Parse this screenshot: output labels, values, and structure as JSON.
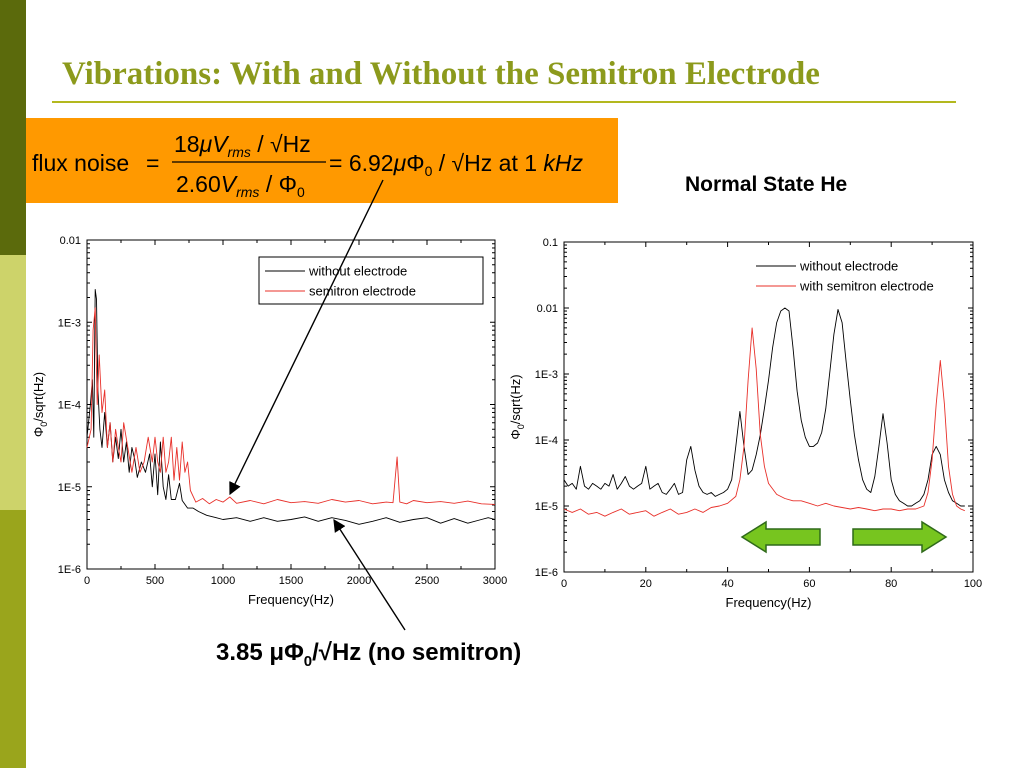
{
  "slide": {
    "title": "Vibrations: With and Without the Semitron Electrode",
    "subtitle_right": "Normal State He",
    "bottom_caption_pre": "3.85 μΦ",
    "bottom_caption_sub": "0",
    "bottom_caption_post": "/√Hz (no semitron)",
    "formula": {
      "lead": "flux noise",
      "eq1": "=",
      "num_coeff": "18",
      "num_mu": "μ",
      "num_V": "V",
      "num_sub": "rms",
      "num_rest": " / √Hz",
      "den_coeff": "2.60",
      "den_V": "V",
      "den_sub": "rms",
      "den_rest": " / Φ",
      "den_sub2": "0",
      "eq2": "= 6.92",
      "res_mu": "μ",
      "res_phi": "Φ",
      "res_sub": "0",
      "res_rest": " / √Hz",
      "tail": " at 1 ",
      "tail_unit": "kHz"
    },
    "colors": {
      "sidebar_top": "#5b6a0c",
      "sidebar_mid": "#cdd36a",
      "sidebar_bottom": "#9aa51c",
      "title": "#8c9a1c",
      "rule": "#b3b81e",
      "formula_bg": "#ff9900",
      "arrow_fill": "#77c51f",
      "arrow_stroke": "#2f6a1a",
      "black_series": "#000000",
      "red_series": "#e8302a"
    }
  },
  "chart_data": [
    {
      "type": "line",
      "xlabel": "Frequency(Hz)",
      "ylabel_phi": "Φ",
      "ylabel_sub": "0",
      "ylabel_rest": "/sqrt(Hz)",
      "xlim": [
        0,
        3000
      ],
      "ylim": [
        1e-06,
        0.01
      ],
      "yscale": "log",
      "x_ticks": [
        0,
        500,
        1000,
        1500,
        2000,
        2500,
        3000
      ],
      "x_tick_labels": [
        "0",
        "500",
        "1000",
        "1500",
        "2000",
        "2500",
        "3000"
      ],
      "y_ticks": [
        1e-06,
        1e-05,
        0.0001,
        0.001,
        0.01
      ],
      "y_tick_labels": [
        "1E-6",
        "1E-5",
        "1E-4",
        "1E-3",
        "0.01"
      ],
      "legend_position": "top-right",
      "series": [
        {
          "name": "without electrode",
          "color": "#000000",
          "x": [
            0,
            25,
            40,
            50,
            60,
            70,
            80,
            95,
            110,
            130,
            150,
            170,
            190,
            210,
            230,
            250,
            270,
            290,
            310,
            330,
            350,
            370,
            400,
            430,
            460,
            480,
            500,
            520,
            540,
            560,
            580,
            600,
            620,
            650,
            680,
            700,
            740,
            780,
            820,
            880,
            950,
            1000,
            1100,
            1200,
            1300,
            1400,
            1500,
            1600,
            1700,
            1800,
            1900,
            2000,
            2100,
            2200,
            2300,
            2400,
            2500,
            2600,
            2700,
            2800,
            2900,
            2950,
            3000
          ],
          "y": [
            4e-05,
            0.0001,
            0.0002,
            4e-05,
            0.0025,
            0.0019,
            0.00015,
            5e-05,
            3e-05,
            8e-05,
            3e-05,
            6e-05,
            2e-05,
            4e-05,
            2.2e-05,
            5e-05,
            2e-05,
            3.5e-05,
            1.5e-05,
            3e-05,
            2.2e-05,
            1.3e-05,
            2e-05,
            1.5e-05,
            2.5e-05,
            1e-05,
            2.5e-05,
            8e-06,
            3.5e-05,
            1e-05,
            7e-06,
            1.4e-05,
            7e-06,
            7e-06,
            1.1e-05,
            6.8e-06,
            5.5e-06,
            5.5e-06,
            5e-06,
            4.5e-06,
            4.2e-06,
            4e-06,
            4.2e-06,
            3.8e-06,
            4.2e-06,
            3.8e-06,
            4e-06,
            4.3e-06,
            3.8e-06,
            4.2e-06,
            3.9e-06,
            3.5e-06,
            3.8e-06,
            4.2e-06,
            3.7e-06,
            4e-06,
            4.2e-06,
            3.6e-06,
            4.1e-06,
            3.6e-06,
            4e-06,
            4.2e-06,
            4e-06
          ]
        },
        {
          "name": "semitron electrode",
          "color": "#e8302a",
          "x": [
            0,
            30,
            45,
            60,
            75,
            90,
            110,
            130,
            150,
            170,
            190,
            210,
            230,
            250,
            270,
            300,
            330,
            360,
            390,
            420,
            450,
            480,
            500,
            520,
            540,
            560,
            580,
            600,
            620,
            640,
            660,
            680,
            700,
            720,
            740,
            760,
            800,
            850,
            900,
            950,
            1000,
            1050,
            1100,
            1200,
            1300,
            1400,
            1500,
            1600,
            1700,
            1800,
            1900,
            2000,
            2100,
            2200,
            2250,
            2280,
            2300,
            2350,
            2400,
            2500,
            2600,
            2700,
            2800,
            2900,
            3000
          ],
          "y": [
            3e-05,
            5e-05,
            0.0008,
            0.0015,
            0.0001,
            0.0004,
            8e-05,
            0.00015,
            3e-05,
            6e-05,
            2e-05,
            5e-05,
            3e-05,
            2e-05,
            6e-05,
            3e-05,
            1.5e-05,
            3e-05,
            1.5e-05,
            2e-05,
            4e-05,
            2e-05,
            4e-05,
            2e-05,
            1.5e-05,
            4e-05,
            1.5e-05,
            2e-05,
            4e-05,
            1.2e-05,
            3e-05,
            1.2e-05,
            3.5e-05,
            1.5e-05,
            2e-05,
            9e-06,
            6.5e-06,
            7.2e-06,
            6.2e-06,
            7e-06,
            6.5e-06,
            7.5e-06,
            6.3e-06,
            6.8e-06,
            6.2e-06,
            7e-06,
            6.4e-06,
            6.6e-06,
            6.3e-06,
            7e-06,
            6.5e-06,
            6.8e-06,
            6.2e-06,
            6.5e-06,
            6.4e-06,
            2.3e-05,
            6.5e-06,
            6.2e-06,
            6.8e-06,
            6.4e-06,
            6.6e-06,
            6.3e-06,
            6.7e-06,
            6.2e-06,
            6.1e-06
          ]
        }
      ]
    },
    {
      "type": "line",
      "xlabel": "Frequency(Hz)",
      "ylabel_phi": "Φ",
      "ylabel_sub": "0",
      "ylabel_rest": "/sqrt(Hz)",
      "xlim": [
        0,
        100
      ],
      "ylim": [
        1e-06,
        0.1
      ],
      "yscale": "log",
      "x_ticks": [
        0,
        20,
        40,
        60,
        80,
        100
      ],
      "x_tick_labels": [
        "0",
        "20",
        "40",
        "60",
        "80",
        "100"
      ],
      "y_ticks": [
        1e-06,
        1e-05,
        0.0001,
        0.001,
        0.01,
        0.1
      ],
      "y_tick_labels": [
        "1E-6",
        "1E-5",
        "1E-4",
        "1E-3",
        "0.01",
        "0.1"
      ],
      "legend_position": "top-right",
      "series": [
        {
          "name": "without electrode",
          "color": "#000000",
          "x": [
            0,
            1,
            2,
            3,
            4,
            5,
            6,
            7,
            8,
            9,
            10,
            11,
            12,
            13,
            14,
            15,
            16,
            17,
            18,
            19,
            20,
            21,
            22,
            23,
            24,
            25,
            26,
            27,
            28,
            29,
            30,
            31,
            32,
            33,
            34,
            35,
            36,
            37,
            38,
            39,
            40,
            41,
            42,
            43,
            44,
            45,
            46,
            47,
            48,
            49,
            50,
            51,
            52,
            53,
            54,
            55,
            56,
            57,
            58,
            59,
            60,
            61,
            62,
            63,
            64,
            65,
            66,
            67,
            68,
            69,
            70,
            71,
            72,
            73,
            74,
            75,
            76,
            77,
            78,
            79,
            80,
            81,
            82,
            83,
            84,
            85,
            86,
            87,
            88,
            89,
            90,
            91,
            92,
            93,
            94,
            95,
            96,
            97,
            98
          ],
          "y": [
            2.5e-05,
            2e-05,
            2.2e-05,
            1.8e-05,
            4e-05,
            2e-05,
            1.8e-05,
            2.2e-05,
            2e-05,
            1.8e-05,
            2.2e-05,
            2e-05,
            3e-05,
            1.8e-05,
            2.2e-05,
            2.8e-05,
            2e-05,
            1.8e-05,
            2e-05,
            2.2e-05,
            4e-05,
            1.8e-05,
            2e-05,
            2.2e-05,
            1.6e-05,
            1.5e-05,
            1.8e-05,
            2.2e-05,
            1.5e-05,
            1.6e-05,
            5e-05,
            8e-05,
            3.5e-05,
            2e-05,
            1.6e-05,
            1.5e-05,
            1.6e-05,
            1.4e-05,
            1.5e-05,
            1.6e-05,
            1.8e-05,
            2.5e-05,
            8e-05,
            0.00027,
            8e-05,
            3e-05,
            3.5e-05,
            6e-05,
            0.00012,
            0.0003,
            0.0008,
            0.0025,
            0.006,
            0.009,
            0.01,
            0.009,
            0.0025,
            0.00055,
            0.0002,
            0.00011,
            8e-05,
            8e-05,
            9e-05,
            0.00013,
            0.0003,
            0.0011,
            0.004,
            0.0095,
            0.006,
            0.0015,
            0.0004,
            0.00012,
            5e-05,
            2.5e-05,
            1.8e-05,
            1.6e-05,
            2.8e-05,
            8e-05,
            0.00025,
            9e-05,
            2.5e-05,
            1.5e-05,
            1.2e-05,
            1.1e-05,
            1e-05,
            1e-05,
            1.1e-05,
            1.2e-05,
            1.5e-05,
            2.5e-05,
            6e-05,
            8e-05,
            6e-05,
            2.5e-05,
            1.6e-05,
            1.2e-05,
            1.1e-05,
            1e-05,
            1e-05
          ]
        },
        {
          "name": "with semitron electrode",
          "color": "#e8302a",
          "x": [
            0,
            2,
            4,
            6,
            8,
            10,
            12,
            14,
            16,
            18,
            20,
            22,
            24,
            26,
            28,
            30,
            32,
            34,
            36,
            38,
            40,
            42,
            43,
            44,
            45,
            46,
            47,
            48,
            49,
            50,
            52,
            54,
            56,
            58,
            60,
            62,
            64,
            66,
            68,
            70,
            72,
            74,
            76,
            78,
            80,
            82,
            84,
            86,
            88,
            89,
            90,
            91,
            92,
            93,
            94,
            95,
            96,
            97,
            98
          ],
          "y": [
            9e-06,
            8e-06,
            9e-06,
            7.5e-06,
            8e-06,
            7e-06,
            8e-06,
            9e-06,
            7.5e-06,
            8e-06,
            8.5e-06,
            7e-06,
            8e-06,
            9e-06,
            7.5e-06,
            8e-06,
            9e-06,
            8e-06,
            9.5e-06,
            1e-05,
            1.1e-05,
            1.4e-05,
            2.5e-05,
            8e-05,
            0.0008,
            0.005,
            0.0012,
            0.00012,
            4e-05,
            2.2e-05,
            1.5e-05,
            1.3e-05,
            1.2e-05,
            1.2e-05,
            1.1e-05,
            1e-05,
            1.1e-05,
            1e-05,
            9.5e-06,
            9e-06,
            9.5e-06,
            9e-06,
            8.5e-06,
            9e-06,
            9e-06,
            8.5e-06,
            9e-06,
            9e-06,
            1e-05,
            1.6e-05,
            5e-05,
            0.00035,
            0.0016,
            0.00035,
            4e-05,
            1.5e-05,
            1e-05,
            9e-06,
            8.5e-06
          ]
        }
      ]
    }
  ]
}
